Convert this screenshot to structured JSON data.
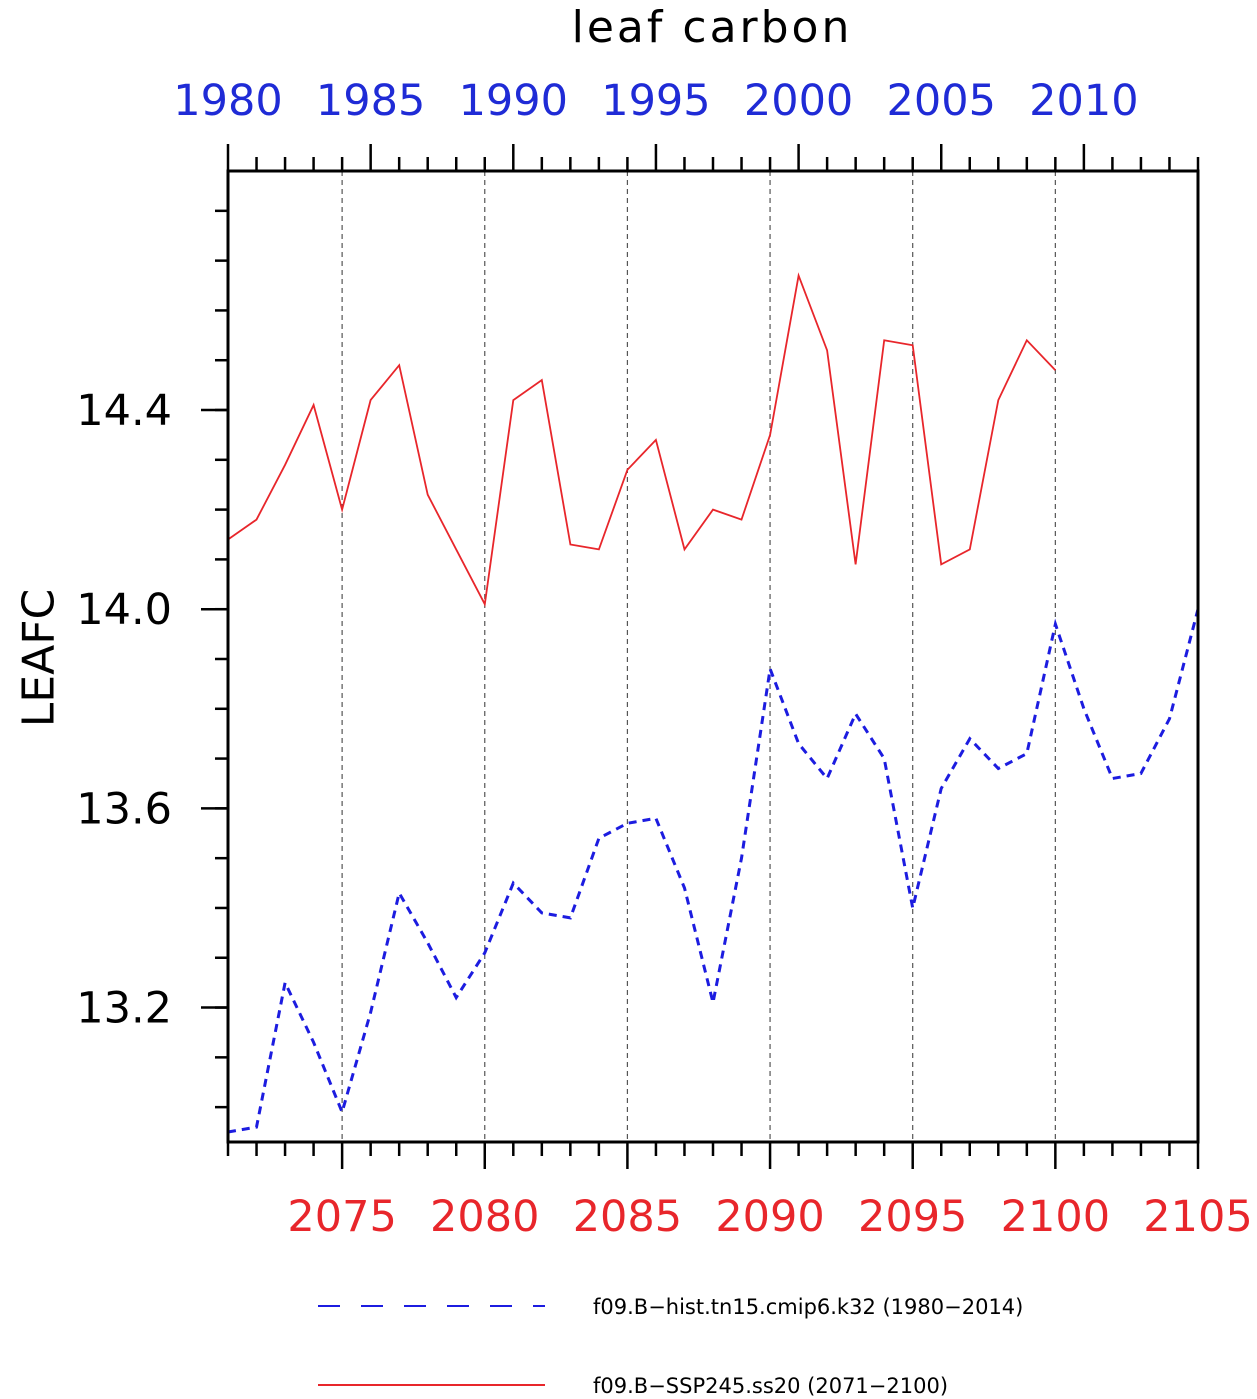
{
  "chart_data": {
    "type": "line",
    "title": "leaf carbon",
    "ylabel": "LEAFC",
    "ylim": [
      12.93,
      14.88
    ],
    "yticks": [
      "13.2",
      "13.6",
      "14.0",
      "14.4"
    ],
    "y_minor_step": 0.1,
    "grid": "vertical dashed lines at major bottom-axis ticks",
    "bottom_axis": {
      "color": "#e8262b",
      "range": [
        2071,
        2105
      ],
      "ticklabels": [
        "2075",
        "2080",
        "2085",
        "2090",
        "2095",
        "2100",
        "2105"
      ]
    },
    "top_axis": {
      "color": "#1f2bd6",
      "range": [
        1980,
        2014
      ],
      "ticklabels": [
        "1980",
        "1985",
        "1990",
        "1995",
        "2000",
        "2005",
        "2010"
      ]
    },
    "series": [
      {
        "name": "f09.B-hist.tn15.cmip6.k32 (1980-2014)",
        "color": "#1c1ce0",
        "style": "dashed",
        "axis": "top",
        "x": [
          1980,
          1981,
          1982,
          1983,
          1984,
          1985,
          1986,
          1987,
          1988,
          1989,
          1990,
          1991,
          1992,
          1993,
          1994,
          1995,
          1996,
          1997,
          1998,
          1999,
          2000,
          2001,
          2002,
          2003,
          2004,
          2005,
          2006,
          2007,
          2008,
          2009,
          2010,
          2011,
          2012,
          2013,
          2014
        ],
        "values": [
          12.95,
          12.96,
          13.25,
          13.13,
          12.99,
          13.19,
          13.43,
          13.33,
          13.22,
          13.31,
          13.45,
          13.39,
          13.38,
          13.54,
          13.57,
          13.58,
          13.44,
          13.21,
          13.5,
          13.88,
          13.73,
          13.66,
          13.79,
          13.7,
          13.4,
          13.64,
          13.74,
          13.68,
          13.71,
          13.97,
          13.8,
          13.66,
          13.67,
          13.78,
          14.0
        ]
      },
      {
        "name": "f09.B-SSP245.ss20 (2071-2100)",
        "color": "#e8262b",
        "style": "solid",
        "axis": "bottom",
        "x": [
          2071,
          2072,
          2073,
          2074,
          2075,
          2076,
          2077,
          2078,
          2079,
          2080,
          2081,
          2082,
          2083,
          2084,
          2085,
          2086,
          2087,
          2088,
          2089,
          2090,
          2091,
          2092,
          2093,
          2094,
          2095,
          2096,
          2097,
          2098,
          2099,
          2100
        ],
        "values": [
          14.14,
          14.18,
          14.29,
          14.41,
          14.2,
          14.42,
          14.49,
          14.23,
          14.12,
          14.01,
          14.42,
          14.46,
          14.13,
          14.12,
          14.28,
          14.34,
          14.12,
          14.2,
          14.18,
          14.35,
          14.67,
          14.52,
          14.09,
          14.54,
          14.53,
          14.09,
          14.12,
          14.42,
          14.54,
          14.48
        ]
      }
    ]
  },
  "legend": [
    {
      "label": "f09.B−hist.tn15.cmip6.k32 (1980−2014)",
      "color": "#1c1ce0",
      "style": "dashed"
    },
    {
      "label": "f09.B−SSP245.ss20 (2071−2100)",
      "color": "#e8262b",
      "style": "solid"
    }
  ]
}
